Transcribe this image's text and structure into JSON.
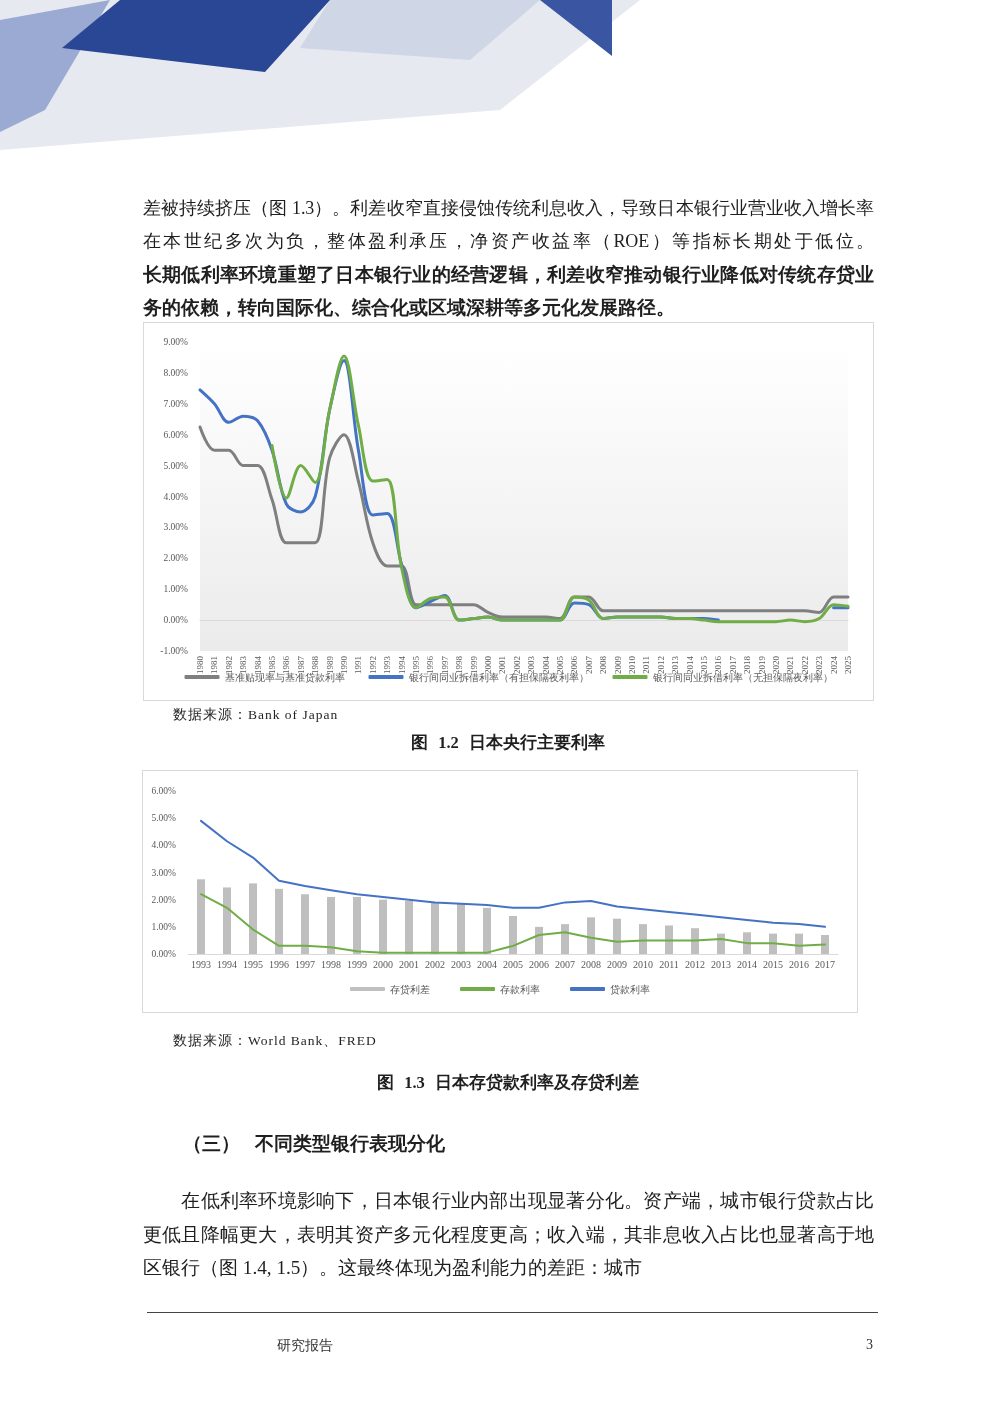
{
  "chart_data": [
    {
      "type": "line",
      "title": "图 1.2 日本央行主要利率",
      "categories": [
        "1980",
        "1981",
        "1982",
        "1983",
        "1984",
        "1985",
        "1986",
        "1987",
        "1988",
        "1989",
        "1990",
        "1991",
        "1992",
        "1993",
        "1994",
        "1995",
        "1996",
        "1997",
        "1998",
        "1999",
        "2000",
        "2001",
        "2002",
        "2003",
        "2004",
        "2005",
        "2006",
        "2007",
        "2008",
        "2009",
        "2010",
        "2011",
        "2012",
        "2013",
        "2014",
        "2015",
        "2016",
        "2017",
        "2018",
        "2019",
        "2020",
        "2021",
        "2022",
        "2023",
        "2024",
        "2025"
      ],
      "series": [
        {
          "name": "基准贴现率与基准贷款利率",
          "color": "#7f7f7f",
          "values": [
            6.25,
            5.5,
            5.5,
            5.0,
            5.0,
            3.9,
            2.5,
            2.5,
            2.5,
            5.25,
            6.0,
            4.5,
            2.5,
            1.75,
            1.75,
            0.5,
            0.5,
            0.5,
            0.5,
            0.5,
            0.25,
            0.1,
            0.1,
            0.1,
            0.1,
            0.05,
            0.75,
            0.75,
            0.3,
            0.3,
            0.3,
            0.3,
            0.3,
            0.3,
            0.3,
            0.3,
            0.3,
            0.3,
            0.3,
            0.3,
            0.3,
            0.3,
            0.3,
            0.25,
            0.75,
            0.75
          ]
        },
        {
          "name": "银行间同业拆借利率（有担保隔夜利率）",
          "color": "#4472c4",
          "values": [
            7.45,
            7.0,
            6.4,
            6.6,
            6.45,
            5.5,
            3.75,
            3.5,
            4.0,
            6.8,
            8.4,
            5.5,
            3.4,
            3.45,
            1.8,
            0.4,
            0.6,
            0.8,
            0.0,
            0.05,
            0.1,
            0.0,
            0.0,
            0.0,
            0.0,
            0.0,
            0.55,
            0.5,
            0.05,
            0.1,
            0.1,
            0.1,
            0.1,
            0.05,
            0.05,
            0.05,
            0.0,
            null,
            null,
            null,
            null,
            null,
            null,
            null,
            0.4,
            0.4
          ]
        },
        {
          "name": "银行间同业拆借利率（无担保隔夜利率）",
          "color": "#70ad47",
          "values": [
            null,
            null,
            null,
            null,
            null,
            5.65,
            3.95,
            5.0,
            4.45,
            6.8,
            8.55,
            6.3,
            4.5,
            4.55,
            1.7,
            0.4,
            0.7,
            0.75,
            0.0,
            0.05,
            0.1,
            0.0,
            0.0,
            0.0,
            0.0,
            0.0,
            0.75,
            0.65,
            0.05,
            0.1,
            0.1,
            0.1,
            0.1,
            0.05,
            0.05,
            0.0,
            -0.05,
            -0.05,
            -0.05,
            -0.05,
            -0.05,
            0.0,
            -0.05,
            0.05,
            0.5,
            0.45
          ]
        }
      ],
      "ylim": [
        -1,
        9
      ],
      "yticks": [
        {
          "value": -1,
          "label": "-1.00%"
        },
        {
          "value": 0,
          "label": "0.00%"
        },
        {
          "value": 1,
          "label": "1.00%"
        },
        {
          "value": 2,
          "label": "2.00%"
        },
        {
          "value": 3,
          "label": "3.00%"
        },
        {
          "value": 4,
          "label": "4.00%"
        },
        {
          "value": 5,
          "label": "5.00%"
        },
        {
          "value": 6,
          "label": "6.00%"
        },
        {
          "value": 7,
          "label": "7.00%"
        },
        {
          "value": 8,
          "label": "8.00%"
        },
        {
          "value": 9,
          "label": "9.00%"
        }
      ],
      "legend": "bottom",
      "marker": "none",
      "annotations": [
        "差被持续挤压（图 1.3）。利差收窄直接侵蚀传统利息收入，导致日本银行业营业收入增长率在本世纪多次为负，整体盈利承压，净资产收益率（ROE）等指标长期处于低位。",
        "长期低利率环境重塑了日本银行业的经营逻辑，利差收窄推动银行业降低对传统存贷业务的依赖，转向国际化、综合化或区域深耕等多元化发展路径。",
        "数据来源：Bank of Japan"
      ]
    },
    {
      "type": "bar",
      "title": "图 1.3 日本存贷款利率及存贷利差",
      "categories": [
        "1993",
        "1994",
        "1995",
        "1996",
        "1997",
        "1998",
        "1999",
        "2000",
        "2001",
        "2002",
        "2003",
        "2004",
        "2005",
        "2006",
        "2007",
        "2008",
        "2009",
        "2010",
        "2011",
        "2012",
        "2013",
        "2014",
        "2015",
        "2016",
        "2017"
      ],
      "series": [
        {
          "name": "存贷利差",
          "type": "bar",
          "color": "#bfbfbf",
          "values": [
            2.75,
            2.45,
            2.6,
            2.4,
            2.2,
            2.1,
            2.1,
            2.0,
            1.95,
            1.9,
            1.85,
            1.7,
            1.4,
            1.0,
            1.1,
            1.35,
            1.3,
            1.1,
            1.05,
            0.95,
            0.75,
            0.8,
            0.75,
            0.75,
            0.7
          ]
        },
        {
          "name": "存款利率",
          "type": "line",
          "color": "#70ad47",
          "values": [
            2.2,
            1.7,
            0.9,
            0.3,
            0.3,
            0.25,
            0.1,
            0.05,
            0.05,
            0.05,
            0.05,
            0.05,
            0.3,
            0.7,
            0.8,
            0.6,
            0.45,
            0.5,
            0.5,
            0.5,
            0.55,
            0.4,
            0.4,
            0.3,
            0.35
          ]
        },
        {
          "name": "贷款利率",
          "type": "line",
          "color": "#4472c4",
          "values": [
            4.9,
            4.15,
            3.55,
            2.7,
            2.5,
            2.35,
            2.2,
            2.1,
            2.0,
            1.9,
            1.85,
            1.8,
            1.7,
            1.7,
            1.9,
            1.95,
            1.75,
            1.65,
            1.55,
            1.45,
            1.35,
            1.25,
            1.15,
            1.1,
            1.0
          ]
        }
      ],
      "ylim": [
        0,
        6
      ],
      "yticks": [
        {
          "value": 0,
          "label": "0.00%"
        },
        {
          "value": 1,
          "label": "1.00%"
        },
        {
          "value": 2,
          "label": "2.00%"
        },
        {
          "value": 3,
          "label": "3.00%"
        },
        {
          "value": 4,
          "label": "4.00%"
        },
        {
          "value": 5,
          "label": "5.00%"
        },
        {
          "value": 6,
          "label": "6.00%"
        }
      ],
      "legend": "bottom",
      "marker": "none",
      "annotations": [
        "数据来源：World Bank、FRED",
        "（三） 不同类型银行表现分化",
        "在低利率环境影响下，日本银行业内部出现显著分化。资产端，城市银行贷款占比更低且降幅更大，表明其资产多元化程度更高；收入端，其非息收入占比也显著高于地区银行（图 1.4, 1.5）。这最终体现为盈利能力的差距：城市",
        "研究报告",
        "3"
      ]
    }
  ]
}
